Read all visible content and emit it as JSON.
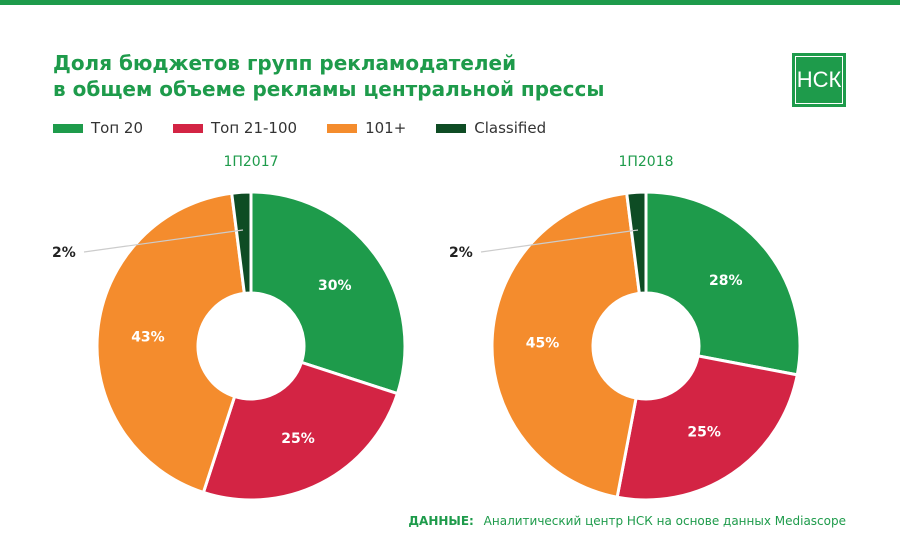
{
  "title": {
    "line1": "Доля бюджетов групп рекламодателей",
    "line2": "в общем объеме рекламы центральной прессы"
  },
  "logo": {
    "text": "НСК"
  },
  "legend": [
    {
      "label": "Топ 20",
      "color": "#1e9b4b"
    },
    {
      "label": "Топ 21-100",
      "color": "#d32444"
    },
    {
      "label": "101+",
      "color": "#f48c2d"
    },
    {
      "label": "Classified",
      "color": "#0e4c24"
    }
  ],
  "chart_data": [
    {
      "type": "pie",
      "variant": "donut",
      "title": "1П2017",
      "categories": [
        "Топ 20",
        "Топ 21-100",
        "101+",
        "Classified"
      ],
      "values": [
        30,
        25,
        43,
        2
      ],
      "labels": [
        "30%",
        "25%",
        "43%",
        "2%"
      ],
      "colors": [
        "#1e9b4b",
        "#d32444",
        "#f48c2d",
        "#0e4c24"
      ]
    },
    {
      "type": "pie",
      "variant": "donut",
      "title": "1П2018",
      "categories": [
        "Топ 20",
        "Топ 21-100",
        "101+",
        "Classified"
      ],
      "values": [
        28,
        25,
        45,
        2
      ],
      "labels": [
        "28%",
        "25%",
        "45%",
        "2%"
      ],
      "colors": [
        "#1e9b4b",
        "#d32444",
        "#f48c2d",
        "#0e4c24"
      ]
    }
  ],
  "footer": {
    "label": "ДАННЫЕ:",
    "text": "Аналитический центр НСК на основе данных Mediascope"
  }
}
